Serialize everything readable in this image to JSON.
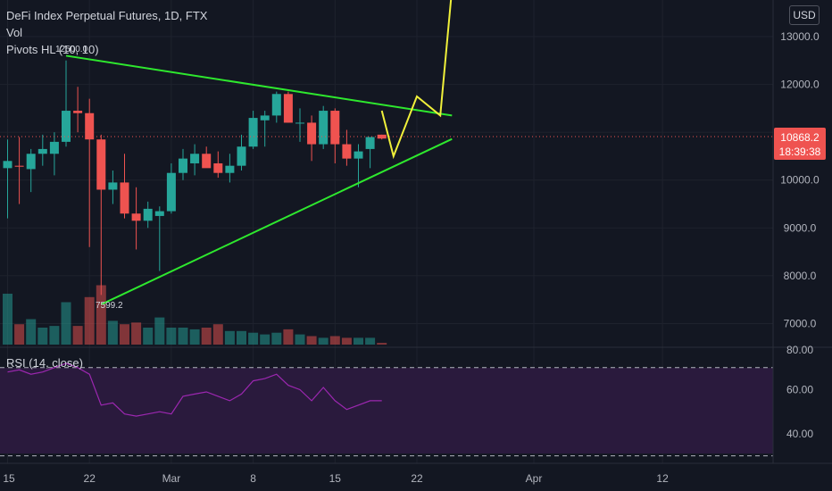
{
  "header": {
    "title": "DeFi Index Perpetual Futures, 1D, FTX",
    "vol_label": "Vol",
    "pivots_label": "Pivots HL (10, 10)",
    "currency_button": "USD"
  },
  "price_tag": {
    "price": "10868.2",
    "countdown": "18:39:38"
  },
  "pivot_labels": {
    "high": "12500.0",
    "low": "7599.2"
  },
  "colors": {
    "background": "#131722",
    "up": "#26a69a",
    "down": "#ef5350",
    "trendline": "#2ee82e",
    "projection": "#f0f03a",
    "rsi_line": "#9c27b0",
    "rsi_band": "#7e57c2"
  },
  "chart_data": [
    {
      "type": "candlestick",
      "title": "DeFi Index Perpetual Futures, 1D, FTX",
      "x_ticks": [
        "15",
        "22",
        "Mar",
        "8",
        "15",
        "22",
        "Apr",
        "12"
      ],
      "y_ticks": [
        "13000.0",
        "12000.0",
        "11000.0",
        "10000.0",
        "9000.0",
        "8000.0",
        "7000.0"
      ],
      "ylim": [
        6600,
        13600
      ],
      "candles": [
        {
          "date": "Feb 15",
          "o": 10250,
          "h": 10850,
          "l": 9200,
          "c": 10400
        },
        {
          "date": "Feb 16",
          "o": 10300,
          "h": 10900,
          "l": 9500,
          "c": 10280
        },
        {
          "date": "Feb 17",
          "o": 10230,
          "h": 10650,
          "l": 9750,
          "c": 10550
        },
        {
          "date": "Feb 18",
          "o": 10550,
          "h": 10950,
          "l": 10300,
          "c": 10650
        },
        {
          "date": "Feb 19",
          "o": 10550,
          "h": 11000,
          "l": 10100,
          "c": 10800
        },
        {
          "date": "Feb 20",
          "o": 10800,
          "h": 12500,
          "l": 10700,
          "c": 11450
        },
        {
          "date": "Feb 21",
          "o": 11450,
          "h": 11950,
          "l": 11000,
          "c": 11400
        },
        {
          "date": "Feb 22",
          "o": 11400,
          "h": 11700,
          "l": 8600,
          "c": 10850
        },
        {
          "date": "Feb 23",
          "o": 10850,
          "h": 10950,
          "l": 7599.2,
          "c": 9800
        },
        {
          "date": "Feb 24",
          "o": 9800,
          "h": 10200,
          "l": 9500,
          "c": 9950
        },
        {
          "date": "Feb 25",
          "o": 9950,
          "h": 10550,
          "l": 9200,
          "c": 9300
        },
        {
          "date": "Feb 26",
          "o": 9300,
          "h": 9850,
          "l": 8550,
          "c": 9150
        },
        {
          "date": "Feb 27",
          "o": 9150,
          "h": 9550,
          "l": 9000,
          "c": 9400
        },
        {
          "date": "Feb 28",
          "o": 9250,
          "h": 9450,
          "l": 8100,
          "c": 9350
        },
        {
          "date": "Mar 1",
          "o": 9350,
          "h": 10350,
          "l": 9300,
          "c": 10150
        },
        {
          "date": "Mar 2",
          "o": 10150,
          "h": 10650,
          "l": 10000,
          "c": 10450
        },
        {
          "date": "Mar 3",
          "o": 10350,
          "h": 10750,
          "l": 10100,
          "c": 10550
        },
        {
          "date": "Mar 4",
          "o": 10550,
          "h": 10700,
          "l": 10300,
          "c": 10250
        },
        {
          "date": "Mar 5",
          "o": 10350,
          "h": 10600,
          "l": 10050,
          "c": 10150
        },
        {
          "date": "Mar 6",
          "o": 10150,
          "h": 10550,
          "l": 9950,
          "c": 10300
        },
        {
          "date": "Mar 7",
          "o": 10300,
          "h": 10950,
          "l": 10200,
          "c": 10700
        },
        {
          "date": "Mar 8",
          "o": 10700,
          "h": 11450,
          "l": 10650,
          "c": 11300
        },
        {
          "date": "Mar 9",
          "o": 11250,
          "h": 11450,
          "l": 10700,
          "c": 11350
        },
        {
          "date": "Mar 10",
          "o": 11350,
          "h": 11850,
          "l": 11200,
          "c": 11800
        },
        {
          "date": "Mar 11",
          "o": 11800,
          "h": 11850,
          "l": 11200,
          "c": 11200
        },
        {
          "date": "Mar 12",
          "o": 11200,
          "h": 11500,
          "l": 10800,
          "c": 11200
        },
        {
          "date": "Mar 13",
          "o": 11200,
          "h": 11350,
          "l": 10400,
          "c": 10750
        },
        {
          "date": "Mar 14",
          "o": 10750,
          "h": 11550,
          "l": 10650,
          "c": 11450
        },
        {
          "date": "Mar 15",
          "o": 11450,
          "h": 11500,
          "l": 10350,
          "c": 10750
        },
        {
          "date": "Mar 16",
          "o": 10750,
          "h": 11050,
          "l": 10300,
          "c": 10450
        },
        {
          "date": "Mar 17",
          "o": 10450,
          "h": 10750,
          "l": 9850,
          "c": 10600
        },
        {
          "date": "Mar 18",
          "o": 10650,
          "h": 10900,
          "l": 10250,
          "c": 10900
        },
        {
          "date": "Mar 19",
          "o": 10950,
          "h": 10950,
          "l": 10850,
          "c": 10868.2
        }
      ],
      "volume": [
        3.0,
        1.2,
        1.5,
        1.0,
        1.1,
        2.5,
        1.1,
        2.8,
        3.5,
        1.4,
        1.2,
        1.3,
        1.0,
        1.6,
        1.0,
        1.0,
        0.9,
        1.0,
        1.2,
        0.8,
        0.8,
        0.7,
        0.6,
        0.7,
        0.9,
        0.6,
        0.5,
        0.4,
        0.5,
        0.4,
        0.4,
        0.4,
        0.1
      ],
      "trendlines": [
        {
          "name": "resistance",
          "from": {
            "date": "Feb 20",
            "price": 12600
          },
          "to": {
            "date": "Mar 25",
            "price": 11350
          }
        },
        {
          "name": "support",
          "from": {
            "date": "Feb 23",
            "price": 7400
          },
          "to": {
            "date": "Mar 25",
            "price": 10860
          }
        }
      ],
      "projection": [
        {
          "date": "Mar 19",
          "price": 11450
        },
        {
          "date": "Mar 20",
          "price": 10500
        },
        {
          "date": "Mar 22",
          "price": 11750
        },
        {
          "date": "Mar 24",
          "price": 11350
        },
        {
          "date": "Mar 25",
          "price": 14000
        }
      ]
    },
    {
      "type": "line",
      "title": "RSI (14, close)",
      "y_ticks": [
        "80.00",
        "60.00",
        "40.00"
      ],
      "ylim": [
        28,
        80
      ],
      "bands": [
        70,
        30
      ],
      "values": [
        68,
        69,
        67,
        68,
        70,
        72,
        70,
        67,
        53,
        54,
        49,
        48,
        49,
        50,
        49,
        57,
        58,
        59,
        57,
        55,
        58,
        64,
        65,
        67,
        62,
        60,
        55,
        61,
        55,
        51,
        53,
        55,
        55
      ]
    }
  ]
}
